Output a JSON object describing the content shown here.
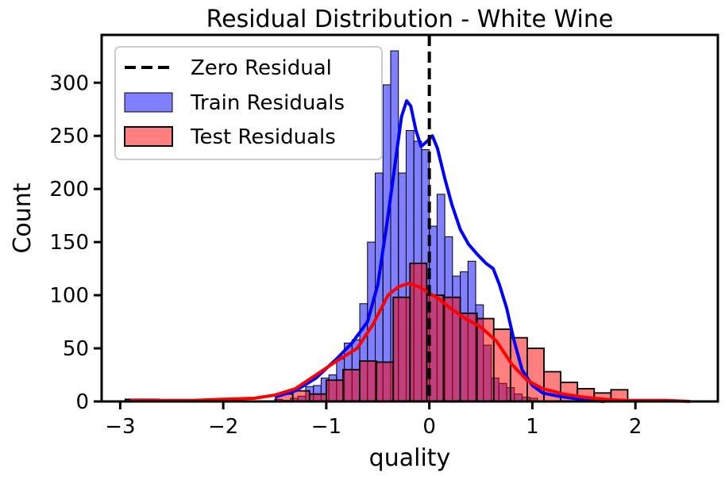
{
  "chart_data": {
    "type": "bar",
    "title": "Residual Distribution - White Wine",
    "xlabel": "quality",
    "ylabel": "Count",
    "xlim": [
      -3.18,
      2.8
    ],
    "ylim": [
      0,
      345
    ],
    "xticks": [
      -3,
      -2,
      -1,
      0,
      1,
      2
    ],
    "xtick_labels": [
      "−3",
      "−2",
      "−1",
      "0",
      "1",
      "2"
    ],
    "yticks": [
      0,
      50,
      100,
      150,
      200,
      250,
      300
    ],
    "ytick_labels": [
      "0",
      "50",
      "100",
      "150",
      "200",
      "250",
      "300"
    ],
    "grid": false,
    "legend_position": "top-left",
    "legend": {
      "zero_label": "Zero Residual",
      "train_label": "Train Residuals",
      "test_label": "Test Residuals"
    },
    "zero_line_x": 0,
    "series": [
      {
        "name": "Train Residuals",
        "color": "#0000ff",
        "bin_start": -1.5,
        "bin_width": 0.075,
        "counts": [
          2,
          1,
          3,
          5,
          14,
          15,
          22,
          25,
          40,
          55,
          58,
          92,
          150,
          215,
          298,
          330,
          215,
          255,
          245,
          237,
          165,
          195,
          155,
          118,
          122,
          132,
          91,
          53,
          22,
          17,
          13,
          7,
          4,
          3
        ],
        "kde_x": [
          -1.5,
          -1.3,
          -1.1,
          -0.9,
          -0.75,
          -0.6,
          -0.5,
          -0.4,
          -0.33,
          -0.27,
          -0.22,
          -0.18,
          -0.13,
          -0.08,
          -0.02,
          0.03,
          0.08,
          0.15,
          0.22,
          0.3,
          0.38,
          0.47,
          0.55,
          0.62,
          0.68,
          0.75,
          0.82,
          0.9,
          1.0,
          1.1,
          1.25,
          1.4,
          1.55,
          1.7
        ],
        "kde_y": [
          4,
          10,
          22,
          40,
          55,
          75,
          110,
          175,
          225,
          268,
          283,
          278,
          255,
          240,
          245,
          250,
          238,
          210,
          185,
          162,
          148,
          138,
          130,
          125,
          110,
          88,
          58,
          30,
          15,
          8,
          5,
          3,
          1,
          0
        ]
      },
      {
        "name": "Test Residuals",
        "color": "#ff0000",
        "bin_start": -2.95,
        "bin_width": 0.1625,
        "counts": [
          2,
          2,
          0,
          0,
          0,
          0,
          0,
          0,
          0,
          7,
          10,
          7,
          20,
          30,
          38,
          37,
          98,
          130,
          100,
          98,
          83,
          78,
          68,
          60,
          50,
          28,
          18,
          12,
          8,
          11,
          0,
          0,
          0,
          0,
          0,
          0,
          2
        ],
        "kde_x": [
          -2.9,
          -2.6,
          -2.3,
          -2.0,
          -1.7,
          -1.5,
          -1.3,
          -1.1,
          -0.9,
          -0.7,
          -0.55,
          -0.4,
          -0.3,
          -0.2,
          -0.1,
          0.0,
          0.1,
          0.2,
          0.35,
          0.5,
          0.65,
          0.8,
          0.95,
          1.1,
          1.3,
          1.5,
          1.7,
          1.9,
          2.1,
          2.3,
          2.53
        ],
        "kde_y": [
          1,
          1,
          1,
          2,
          3,
          6,
          12,
          25,
          38,
          50,
          72,
          100,
          108,
          111,
          108,
          102,
          96,
          88,
          78,
          70,
          57,
          35,
          20,
          12,
          7,
          4,
          2,
          1,
          1,
          1,
          0
        ]
      }
    ]
  }
}
